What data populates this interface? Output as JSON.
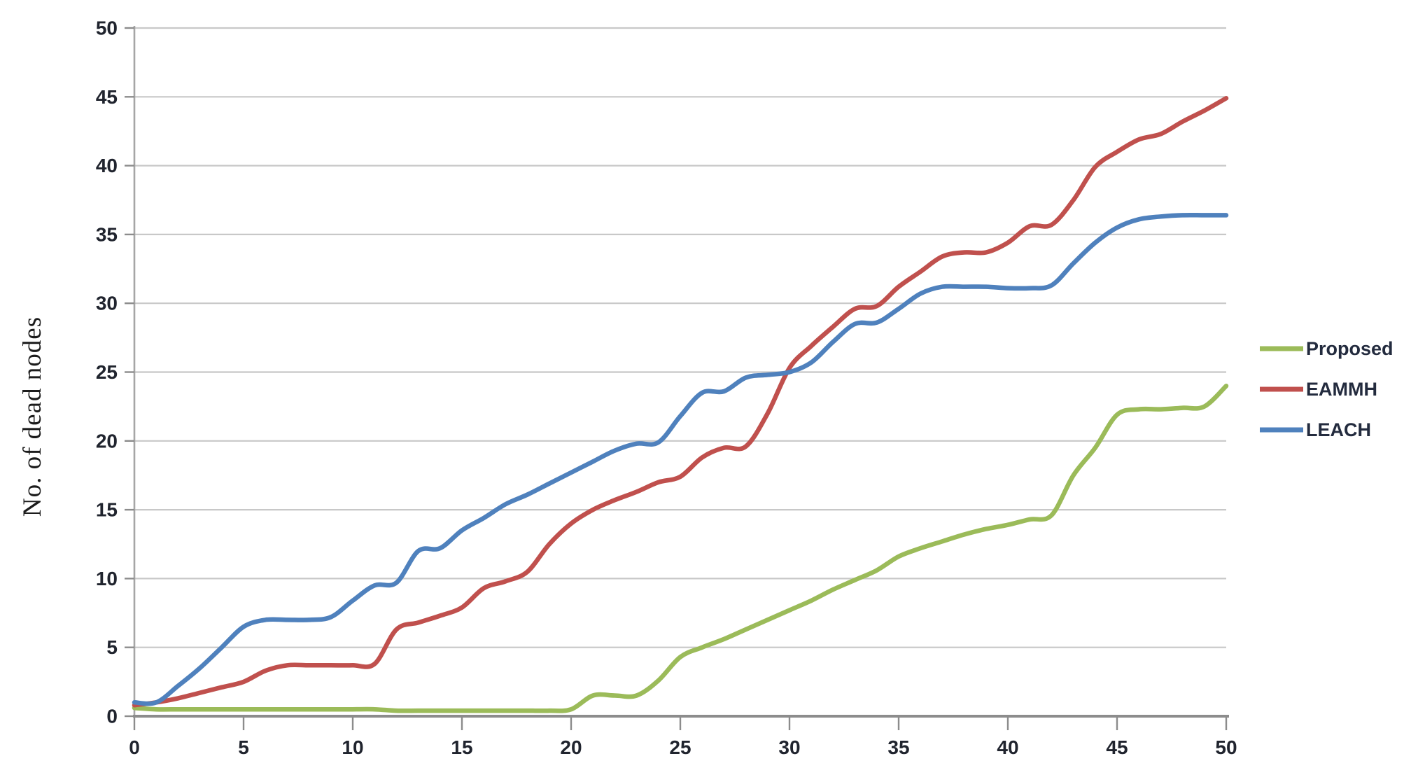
{
  "chart_data": {
    "type": "line",
    "title": "",
    "xlabel": "",
    "ylabel": "No. of dead nodes",
    "xlim": [
      0,
      50
    ],
    "ylim": [
      0,
      50
    ],
    "x_ticks": [
      0,
      5,
      10,
      15,
      20,
      25,
      30,
      35,
      40,
      45,
      50
    ],
    "y_ticks": [
      0,
      5,
      10,
      15,
      20,
      25,
      30,
      35,
      40,
      45,
      50
    ],
    "grid": "horizontal",
    "legend_position": "right",
    "x": [
      0,
      1,
      2,
      3,
      4,
      5,
      6,
      7,
      8,
      9,
      10,
      11,
      12,
      13,
      14,
      15,
      16,
      17,
      18,
      19,
      20,
      21,
      22,
      23,
      24,
      25,
      26,
      27,
      28,
      29,
      30,
      31,
      32,
      33,
      34,
      35,
      36,
      37,
      38,
      39,
      40,
      41,
      42,
      43,
      44,
      45,
      46,
      47,
      48,
      49,
      50
    ],
    "series": [
      {
        "name": "Proposed",
        "color": "#9BBB59",
        "values": [
          0.6,
          0.5,
          0.5,
          0.5,
          0.5,
          0.5,
          0.5,
          0.5,
          0.5,
          0.5,
          0.5,
          0.5,
          0.4,
          0.4,
          0.4,
          0.4,
          0.4,
          0.4,
          0.4,
          0.4,
          0.5,
          1.5,
          1.5,
          1.5,
          2.6,
          4.3,
          5.0,
          5.6,
          6.3,
          7.0,
          7.7,
          8.4,
          9.2,
          9.9,
          10.6,
          11.6,
          12.2,
          12.7,
          13.2,
          13.6,
          13.9,
          14.3,
          14.6,
          17.5,
          19.5,
          21.9,
          22.3,
          22.3,
          22.4,
          22.5,
          24.0
        ]
      },
      {
        "name": "EAMMH",
        "color": "#C0504D",
        "values": [
          0.8,
          1.0,
          1.3,
          1.7,
          2.1,
          2.5,
          3.3,
          3.7,
          3.7,
          3.7,
          3.7,
          3.8,
          6.3,
          6.8,
          7.3,
          7.9,
          9.3,
          9.8,
          10.5,
          12.5,
          14.0,
          15.0,
          15.7,
          16.3,
          17.0,
          17.4,
          18.8,
          19.5,
          19.6,
          22.0,
          25.3,
          26.9,
          28.3,
          29.6,
          29.8,
          31.2,
          32.3,
          33.4,
          33.7,
          33.7,
          34.4,
          35.6,
          35.7,
          37.5,
          39.9,
          41.0,
          41.9,
          42.3,
          43.2,
          44.0,
          44.9
        ]
      },
      {
        "name": "LEACH",
        "color": "#4F81BD",
        "values": [
          1.0,
          1.0,
          2.2,
          3.5,
          5.0,
          6.5,
          7.0,
          7.0,
          7.0,
          7.2,
          8.4,
          9.5,
          9.7,
          12.0,
          12.2,
          13.5,
          14.4,
          15.4,
          16.1,
          16.9,
          17.7,
          18.5,
          19.3,
          19.8,
          19.9,
          21.8,
          23.5,
          23.6,
          24.6,
          24.8,
          25.0,
          25.7,
          27.2,
          28.5,
          28.6,
          29.6,
          30.7,
          31.2,
          31.2,
          31.2,
          31.1,
          31.1,
          31.3,
          32.9,
          34.4,
          35.5,
          36.1,
          36.3,
          36.4,
          36.4,
          36.4
        ]
      }
    ],
    "style": {
      "gridline_color": "#C8C8C8",
      "axis_color": "#8C8C8C",
      "y_axis_line_color": "#A6A6A6",
      "tick_label_color": "#20242E",
      "legend_text_color": "#232B3E",
      "background": "#FFFFFF"
    }
  }
}
